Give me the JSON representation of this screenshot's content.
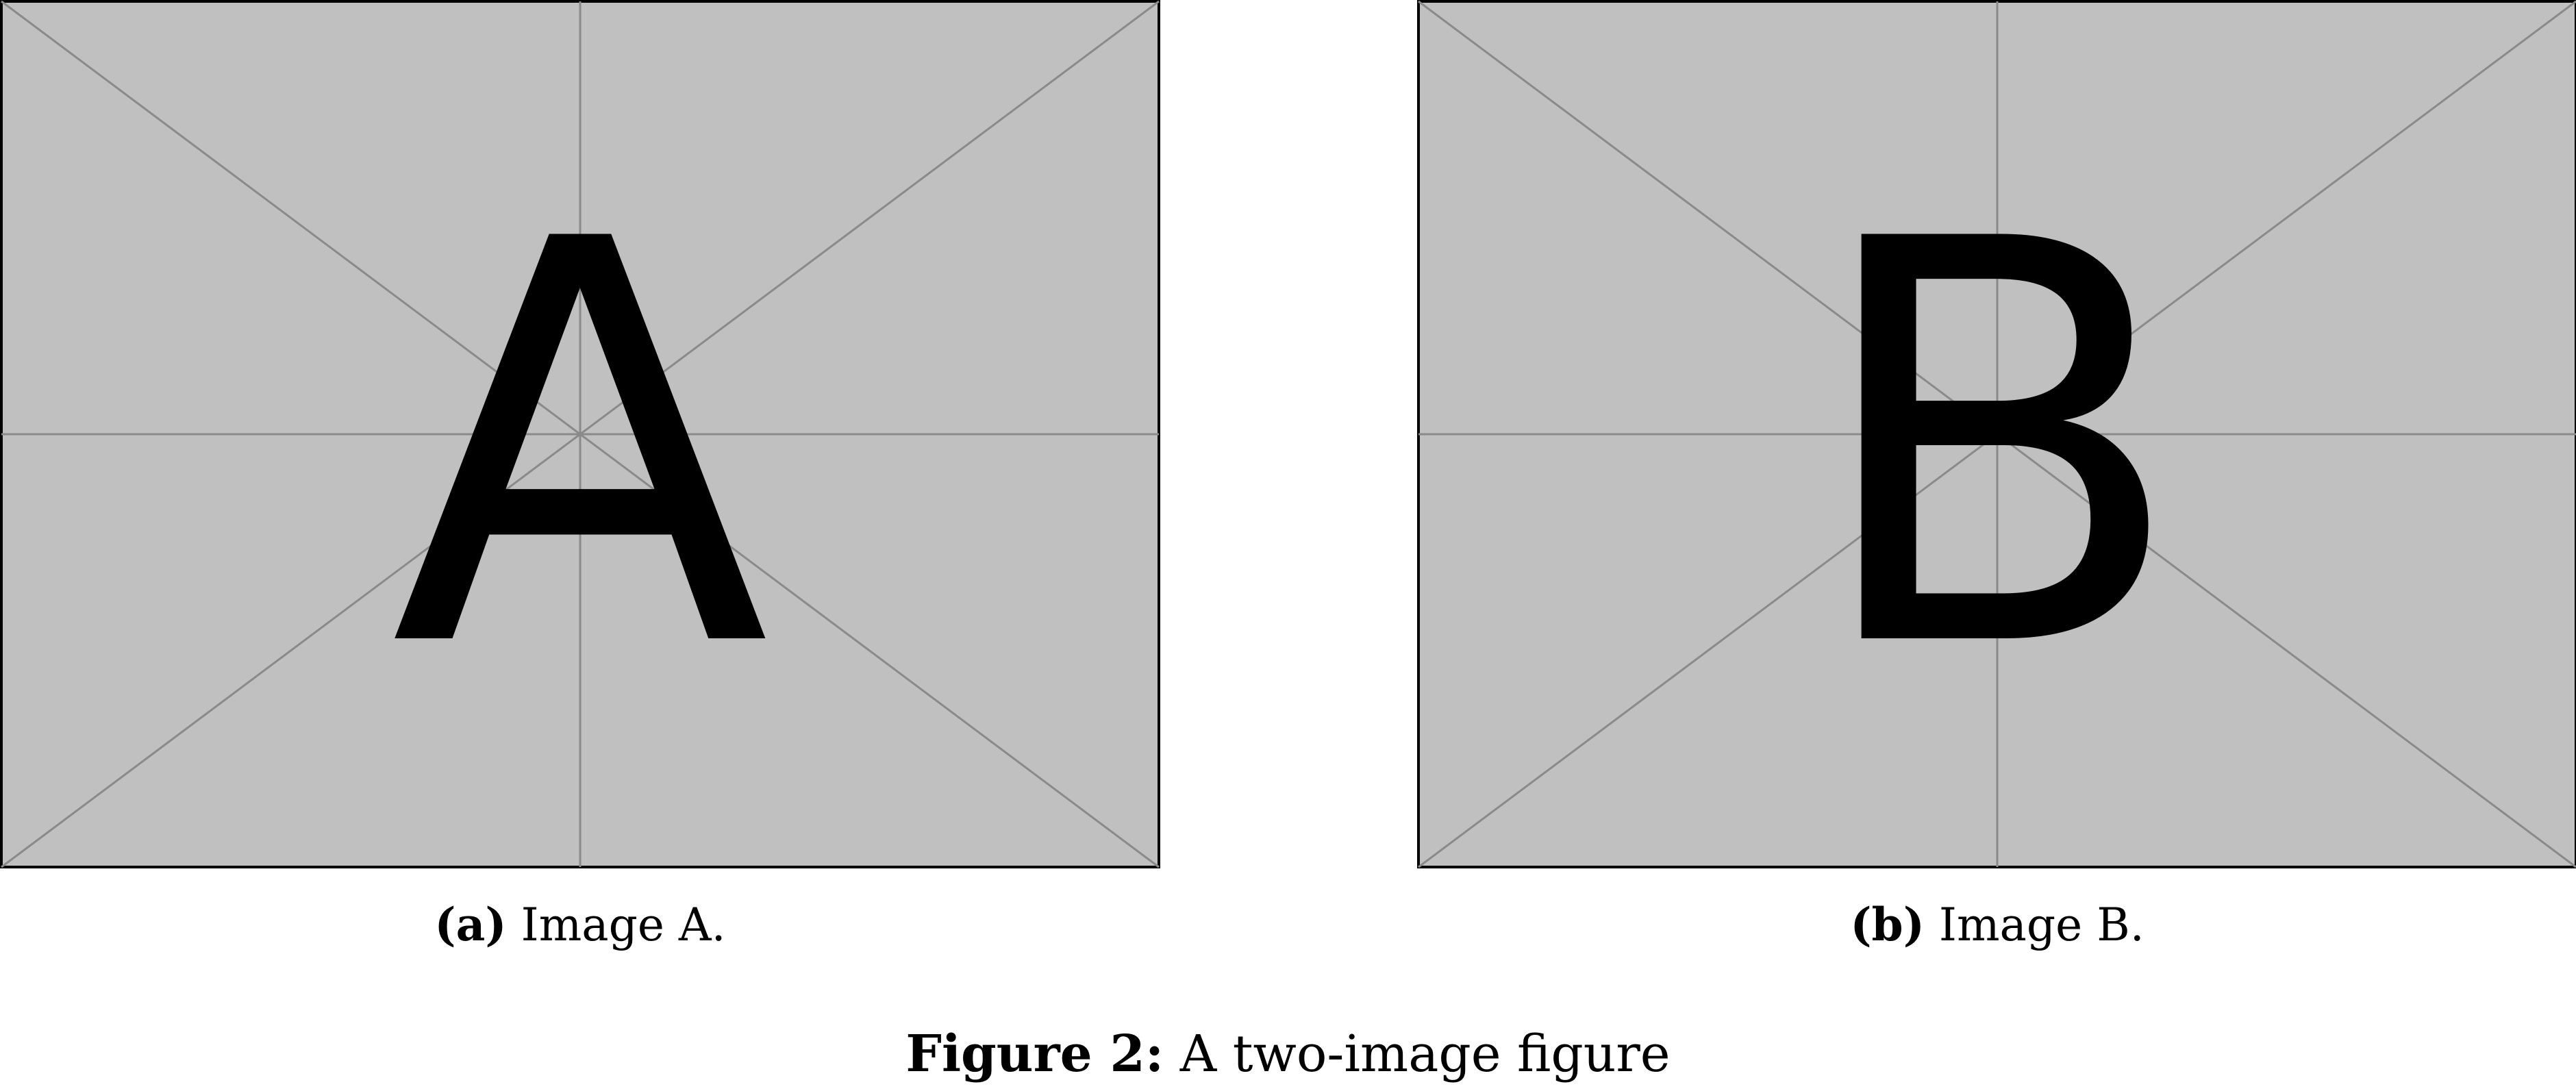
{
  "figure": {
    "number_label": "Figure 2:",
    "caption_text": "A two-image figure"
  },
  "panels": [
    {
      "placeholder_letter": "A",
      "sublabel": "(a)",
      "subcaption": "Image A."
    },
    {
      "placeholder_letter": "B",
      "sublabel": "(b)",
      "subcaption": "Image B."
    }
  ],
  "colors": {
    "placeholder_fill": "#c0c0c0",
    "placeholder_lines": "#8a8a8a",
    "border": "#000000",
    "letter": "#000000"
  }
}
